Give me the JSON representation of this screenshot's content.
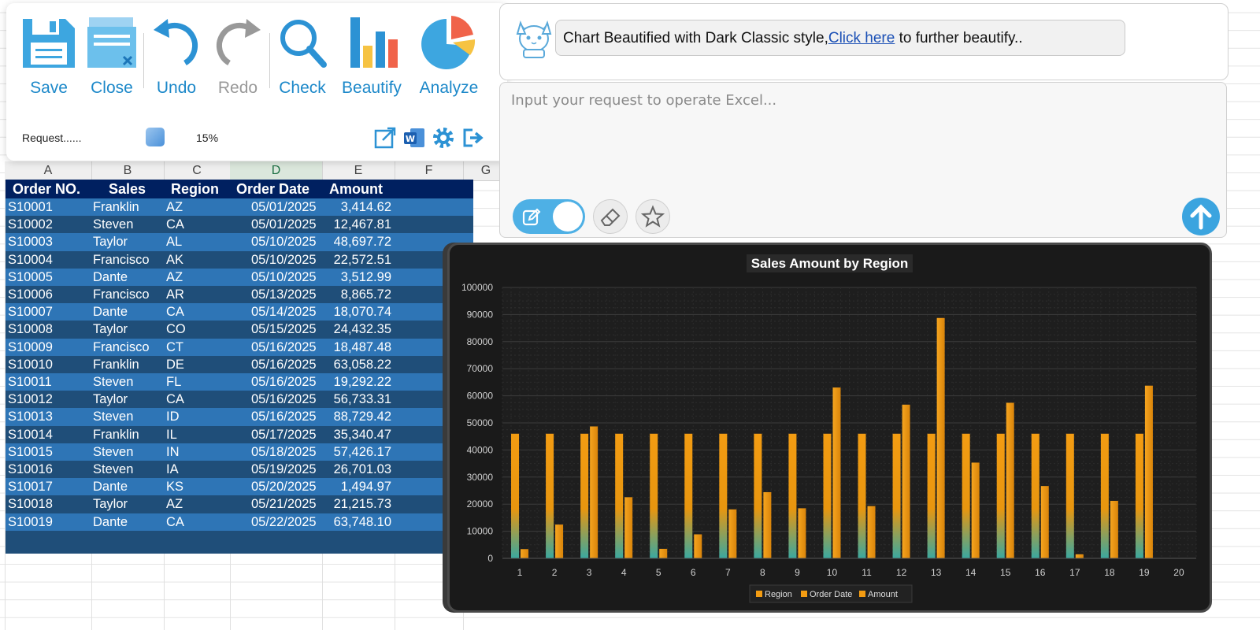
{
  "ribbon": {
    "tools": [
      {
        "name": "save",
        "label": "Save"
      },
      {
        "name": "close",
        "label": "Close"
      },
      {
        "name": "undo",
        "label": "Undo"
      },
      {
        "name": "redo",
        "label": "Redo"
      },
      {
        "name": "check",
        "label": "Check"
      },
      {
        "name": "beautify",
        "label": "Beautify"
      },
      {
        "name": "analyze",
        "label": "Analyze"
      }
    ],
    "request_status": "Request......",
    "progress_percent": "15%",
    "icons": [
      "open-external-icon",
      "word-icon",
      "gear-icon",
      "exit-icon"
    ],
    "accent_color": "#1c88c9"
  },
  "chat": {
    "message_prefix": "Chart Beautified with Dark Classic style,",
    "message_link": "Click here",
    "message_suffix": " to further beautify..",
    "input_placeholder": "Input your request to operate Excel..."
  },
  "sheet": {
    "columns": [
      "A",
      "B",
      "C",
      "D",
      "E",
      "F",
      "G"
    ],
    "selected_column": "D",
    "headers": [
      "Order NO.",
      "Sales",
      "Region",
      "Order Date",
      "Amount"
    ],
    "rows": [
      [
        "S10001",
        "Franklin",
        "AZ",
        "05/01/2025",
        "3,414.62"
      ],
      [
        "S10002",
        "Steven",
        "CA",
        "05/01/2025",
        "12,467.81"
      ],
      [
        "S10003",
        "Taylor",
        "AL",
        "05/10/2025",
        "48,697.72"
      ],
      [
        "S10004",
        "Francisco",
        "AK",
        "05/10/2025",
        "22,572.51"
      ],
      [
        "S10005",
        "Dante",
        "AZ",
        "05/10/2025",
        "3,512.99"
      ],
      [
        "S10006",
        "Francisco",
        "AR",
        "05/13/2025",
        "8,865.72"
      ],
      [
        "S10007",
        "Dante",
        "CA",
        "05/14/2025",
        "18,070.74"
      ],
      [
        "S10008",
        "Taylor",
        "CO",
        "05/15/2025",
        "24,432.35"
      ],
      [
        "S10009",
        "Francisco",
        "CT",
        "05/16/2025",
        "18,487.48"
      ],
      [
        "S10010",
        "Franklin",
        "DE",
        "05/16/2025",
        "63,058.22"
      ],
      [
        "S10011",
        "Steven",
        "FL",
        "05/16/2025",
        "19,292.22"
      ],
      [
        "S10012",
        "Taylor",
        "CA",
        "05/16/2025",
        "56,733.31"
      ],
      [
        "S10013",
        "Steven",
        "ID",
        "05/16/2025",
        "88,729.42"
      ],
      [
        "S10014",
        "Franklin",
        "IL",
        "05/17/2025",
        "35,340.47"
      ],
      [
        "S10015",
        "Steven",
        "IN",
        "05/18/2025",
        "57,426.17"
      ],
      [
        "S10016",
        "Steven",
        "IA",
        "05/19/2025",
        "26,701.03"
      ],
      [
        "S10017",
        "Dante",
        "KS",
        "05/20/2025",
        "1,494.97"
      ],
      [
        "S10018",
        "Taylor",
        "AZ",
        "05/21/2025",
        "21,215.73"
      ],
      [
        "S10019",
        "Dante",
        "CA",
        "05/22/2025",
        "63,748.10"
      ]
    ],
    "header_color": "#002060",
    "row_colors": [
      "#2e75b6",
      "#1f4e79"
    ]
  },
  "chart_data": {
    "type": "bar",
    "title": "Sales Amount by Region",
    "categories": [
      "1",
      "2",
      "3",
      "4",
      "5",
      "6",
      "7",
      "8",
      "9",
      "10",
      "11",
      "12",
      "13",
      "14",
      "15",
      "16",
      "17",
      "18",
      "19",
      "20"
    ],
    "series": [
      {
        "name": "Region",
        "values": [
          0,
          0,
          0,
          0,
          0,
          0,
          0,
          0,
          0,
          0,
          0,
          0,
          0,
          0,
          0,
          0,
          0,
          0,
          0,
          null
        ]
      },
      {
        "name": "Order Date",
        "values": [
          45778,
          45778,
          45787,
          45787,
          45787,
          45790,
          45791,
          45792,
          45793,
          45793,
          45793,
          45793,
          45793,
          45794,
          45795,
          45796,
          45797,
          45798,
          45799,
          null
        ]
      },
      {
        "name": "Amount",
        "values": [
          3414.62,
          12467.81,
          48697.72,
          22572.51,
          3512.99,
          8865.72,
          18070.74,
          24432.35,
          18487.48,
          63058.22,
          19292.22,
          56733.31,
          88729.42,
          35340.47,
          57426.17,
          26701.03,
          1494.97,
          21215.73,
          63748.1,
          null
        ]
      }
    ],
    "ylim": [
      0,
      100000
    ],
    "yticks": [
      "0",
      "10000",
      "20000",
      "30000",
      "40000",
      "50000",
      "60000",
      "70000",
      "80000",
      "90000",
      "100000"
    ],
    "grid": true,
    "legend_position": "bottom",
    "style": "Dark Classic",
    "bar_color": "#f39c12"
  }
}
